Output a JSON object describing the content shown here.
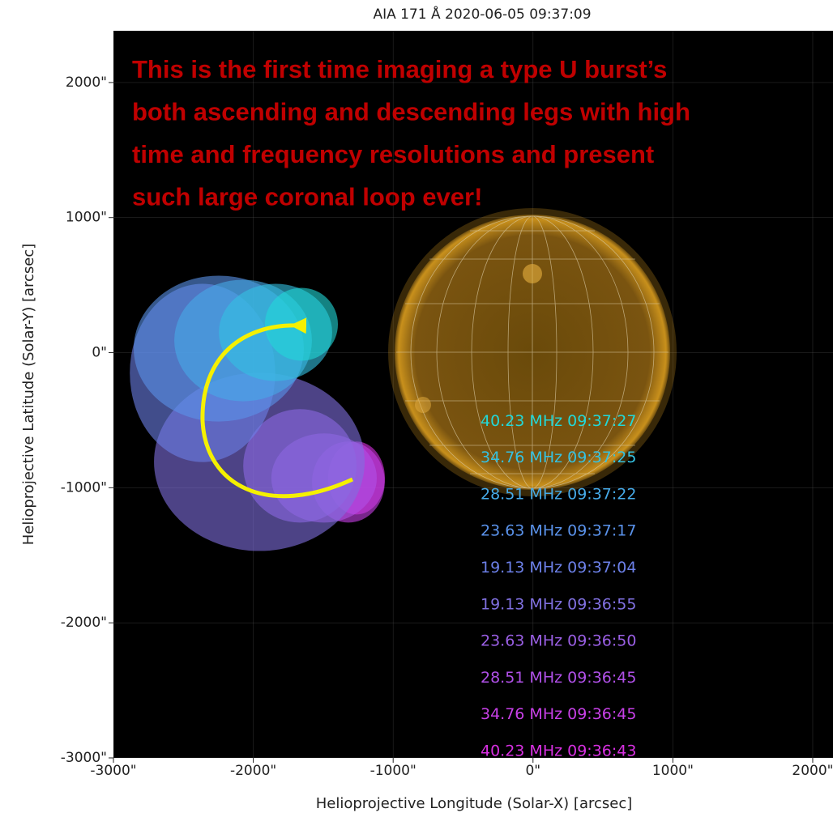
{
  "chart_data": {
    "type": "ellipse",
    "title": "AIA 171 Å 2020-06-05 09:37:09",
    "x_label": "Helioprojective Longitude (Solar-X) [arcsec]",
    "y_label": "Helioprojective Latitude (Solar-Y) [arcsec]",
    "annotation": [
      "This is the first time imaging a type U burst’s",
      "both ascending and descending legs with high",
      "time and frequency resolutions and present",
      "such large coronal loop ever!"
    ],
    "xlim": [
      -3000,
      2145
    ],
    "ylim": [
      -3000,
      2383
    ],
    "xticks": [
      {
        "value": -3000,
        "label": "-3000\""
      },
      {
        "value": -2000,
        "label": "-2000\""
      },
      {
        "value": -1000,
        "label": "-1000\""
      },
      {
        "value": 0,
        "label": "0\""
      },
      {
        "value": 1000,
        "label": "1000\""
      },
      {
        "value": 2000,
        "label": "2000\""
      }
    ],
    "yticks": [
      {
        "value": -3000,
        "label": "-3000\""
      },
      {
        "value": -2000,
        "label": "-2000\""
      },
      {
        "value": -1000,
        "label": "-1000\""
      },
      {
        "value": 0,
        "label": "0\""
      },
      {
        "value": 1000,
        "label": "1000\""
      },
      {
        "value": 2000,
        "label": "2000\""
      }
    ],
    "grid": true,
    "legend": "lower right",
    "series": [
      {
        "name": "40.23 MHz 09:37:27",
        "color": "#22d8d8",
        "x": [
          -1656
        ],
        "values": [
          210
        ],
        "rx": [
          261
        ],
        "ry": [
          270
        ]
      },
      {
        "name": "34.76 MHz 09:37:25",
        "color": "#34c2e2",
        "x": [
          -1841
        ],
        "values": [
          150
        ],
        "rx": [
          405
        ],
        "ry": [
          360
        ]
      },
      {
        "name": "28.51 MHz 09:37:22",
        "color": "#46aae8",
        "x": [
          -2073
        ],
        "values": [
          90
        ],
        "rx": [
          492
        ],
        "ry": [
          450
        ]
      },
      {
        "name": "23.63 MHz 09:37:17",
        "color": "#5a92ea",
        "x": [
          -2247
        ],
        "values": [
          30
        ],
        "rx": [
          608
        ],
        "ry": [
          540
        ]
      },
      {
        "name": "19.13 MHz 09:37:04",
        "color": "#6c80e8",
        "x": [
          -2363
        ],
        "values": [
          -150
        ],
        "rx": [
          520
        ],
        "ry": [
          660
        ]
      },
      {
        "name": "19.13 MHz 09:36:55",
        "color": "#8070e0",
        "x": [
          -1957
        ],
        "values": [
          -808
        ],
        "rx": [
          753
        ],
        "ry": [
          660
        ]
      },
      {
        "name": "23.63 MHz 09:36:50",
        "color": "#9a5fe4",
        "x": [
          -1667
        ],
        "values": [
          -838
        ],
        "rx": [
          405
        ],
        "ry": [
          420
        ]
      },
      {
        "name": "28.51 MHz 09:36:45",
        "color": "#b050e8",
        "x": [
          -1494
        ],
        "values": [
          -928
        ],
        "rx": [
          377
        ],
        "ry": [
          330
        ]
      },
      {
        "name": "34.76 MHz 09:36:45",
        "color": "#c840e8",
        "x": [
          -1320
        ],
        "values": [
          -958
        ],
        "rx": [
          260
        ],
        "ry": [
          300
        ]
      },
      {
        "name": "40.23 MHz 09:36:43",
        "color": "#d830e2",
        "x": [
          -1262
        ],
        "values": [
          -928
        ],
        "rx": [
          203
        ],
        "ry": [
          270
        ]
      }
    ]
  }
}
